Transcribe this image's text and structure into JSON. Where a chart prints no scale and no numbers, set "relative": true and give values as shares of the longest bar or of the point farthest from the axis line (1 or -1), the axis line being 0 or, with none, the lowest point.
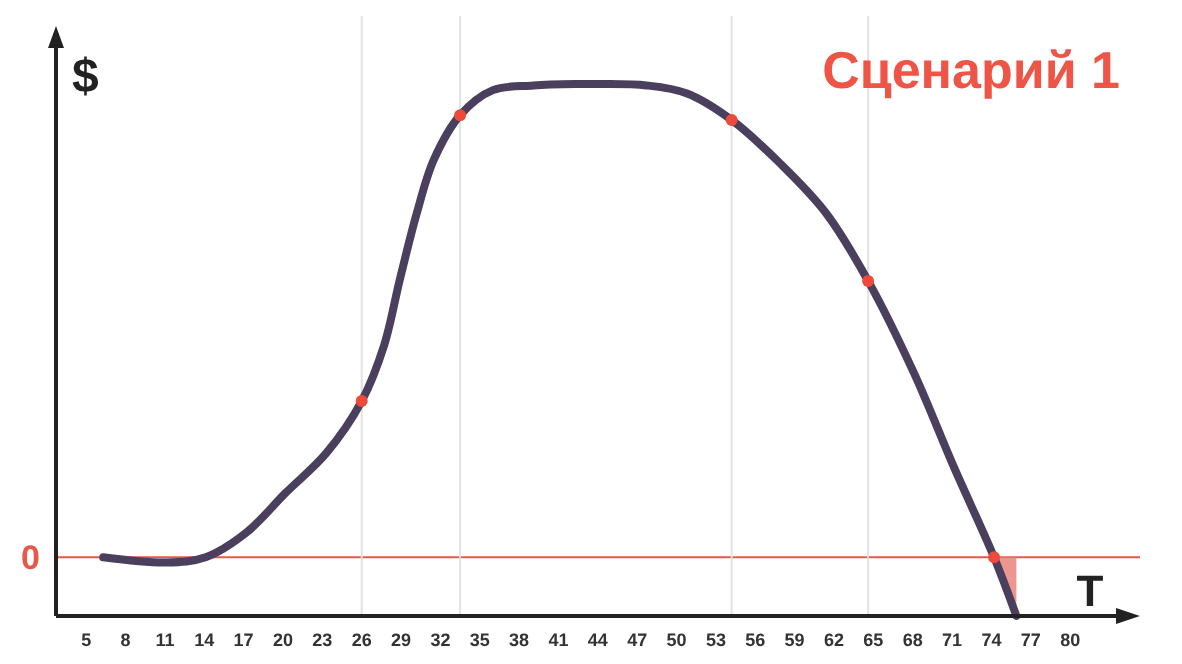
{
  "chart_data": {
    "type": "line",
    "relative": true,
    "title": "Сценарий 1",
    "xlabel": "T",
    "ylabel": "$",
    "xlim": [
      2.7,
      83.8
    ],
    "xticks": [
      5,
      8,
      11,
      14,
      17,
      20,
      23,
      26,
      29,
      32,
      35,
      38,
      41,
      44,
      47,
      50,
      53,
      56,
      59,
      62,
      65,
      68,
      71,
      74,
      77,
      80
    ],
    "series": [
      {
        "type": "line",
        "color": "#4a3f5c",
        "x": [
          6.3,
          11.1,
          14.1,
          17.2,
          20.2,
          23.3,
          26,
          27.7,
          28.9,
          30.2,
          31.5,
          33.5,
          36,
          39.1,
          42.7,
          44.2,
          47.7,
          50.8,
          54.2,
          57.9,
          61.4,
          64.6,
          68.1,
          71.1,
          74.2,
          75.9
        ],
        "values": [
          0,
          -0.011,
          0,
          0.052,
          0.136,
          0.22,
          0.33,
          0.447,
          0.586,
          0.727,
          0.84,
          0.934,
          0.987,
          0.997,
          1,
          1,
          0.997,
          0.98,
          0.924,
          0.832,
          0.727,
          0.584,
          0.389,
          0.193,
          0,
          -0.124
        ]
      },
      {
        "type": "area",
        "color": "#e8857c",
        "x": [
          74.2,
          75.9
        ],
        "values": [
          0,
          -0.124
        ]
      },
      {
        "type": "scatter",
        "color": "#ee4a3c",
        "x": [
          26,
          33.5,
          54.2,
          64.6,
          74.2
        ],
        "values": [
          0.33,
          0.934,
          0.924,
          0.584,
          0
        ]
      }
    ],
    "ref_lines": [
      {
        "axis": "y",
        "value": 0,
        "label": "0",
        "color": "#e8574a"
      },
      {
        "axis": "x",
        "value": 26,
        "color": "#e2e2e2"
      },
      {
        "axis": "x",
        "value": 33.5,
        "color": "#e2e2e2"
      },
      {
        "axis": "x",
        "value": 54.2,
        "color": "#e2e2e2"
      },
      {
        "axis": "x",
        "value": 64.6,
        "color": "#e2e2e2"
      }
    ]
  }
}
